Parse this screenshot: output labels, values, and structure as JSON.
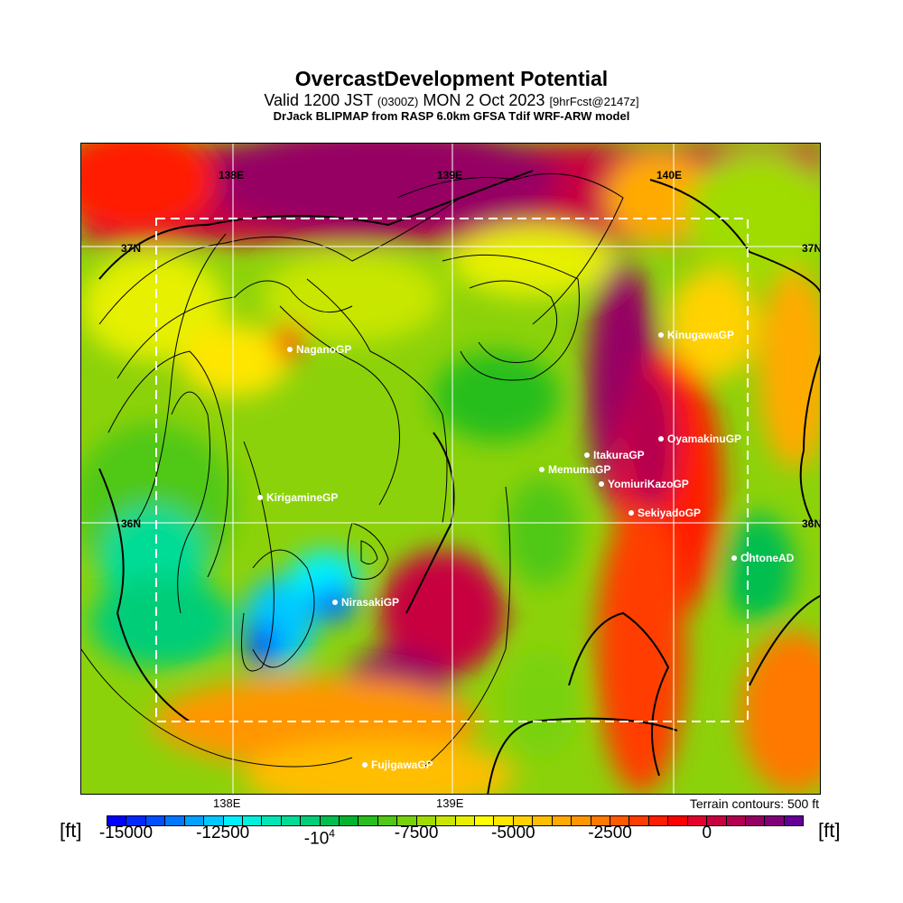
{
  "title": "OvercastDevelopment Potential",
  "subtitle": {
    "pre": "Valid 1200 JST",
    "utc": "(0300Z)",
    "date": "MON 2 Oct 2023",
    "fcst": "[9hrFcst@2147z]"
  },
  "source": "DrJack BLIPMAP from RASP 6.0km GFSA Tdif WRF-ARW model",
  "axis_labels": {
    "lon": [
      "138E",
      "139E",
      "140E"
    ],
    "lat": [
      "37N",
      "36N"
    ]
  },
  "bottom_lon_labels": [
    "138E",
    "139E"
  ],
  "terrain_note": "Terrain contours: 500 ft",
  "stations": [
    "NaganoGP",
    "KinugawaGP",
    "OyamakinuGP",
    "ItakuraGP",
    "MemumaGP",
    "YomiuriKazoGP",
    "SekiyadoGP",
    "KirigamineGP",
    "OhtoneAD",
    "NirasakiGP",
    "FujigawaGP"
  ],
  "colorbar": {
    "unit": "[ft]",
    "range": [
      -15500,
      2500
    ],
    "step": 500,
    "labels": [
      {
        "value": -15000,
        "text": "-15000"
      },
      {
        "value": -12500,
        "text": "-12500"
      },
      {
        "value": -10000,
        "text": "-10",
        "sup": "4"
      },
      {
        "value": -7500,
        "text": "-7500"
      },
      {
        "value": -5000,
        "text": "-5000"
      },
      {
        "value": -2500,
        "text": "-2500"
      },
      {
        "value": 0,
        "text": "0"
      }
    ],
    "colors": [
      "#0000ff",
      "#0028ff",
      "#0050ff",
      "#0078ff",
      "#00a0ff",
      "#00c8ff",
      "#00f0ff",
      "#00f0dc",
      "#00e6b4",
      "#00dc96",
      "#00cd78",
      "#00be50",
      "#00b432",
      "#28be1e",
      "#50c814",
      "#78d20a",
      "#a0dc00",
      "#c8e600",
      "#e6f000",
      "#ffff00",
      "#ffe600",
      "#ffd200",
      "#ffbe00",
      "#ffaa00",
      "#ff9600",
      "#ff7800",
      "#ff5a00",
      "#ff3c00",
      "#ff1e00",
      "#ff0000",
      "#e6002d",
      "#c80041",
      "#b40050",
      "#960064",
      "#820078",
      "#640096"
    ]
  }
}
